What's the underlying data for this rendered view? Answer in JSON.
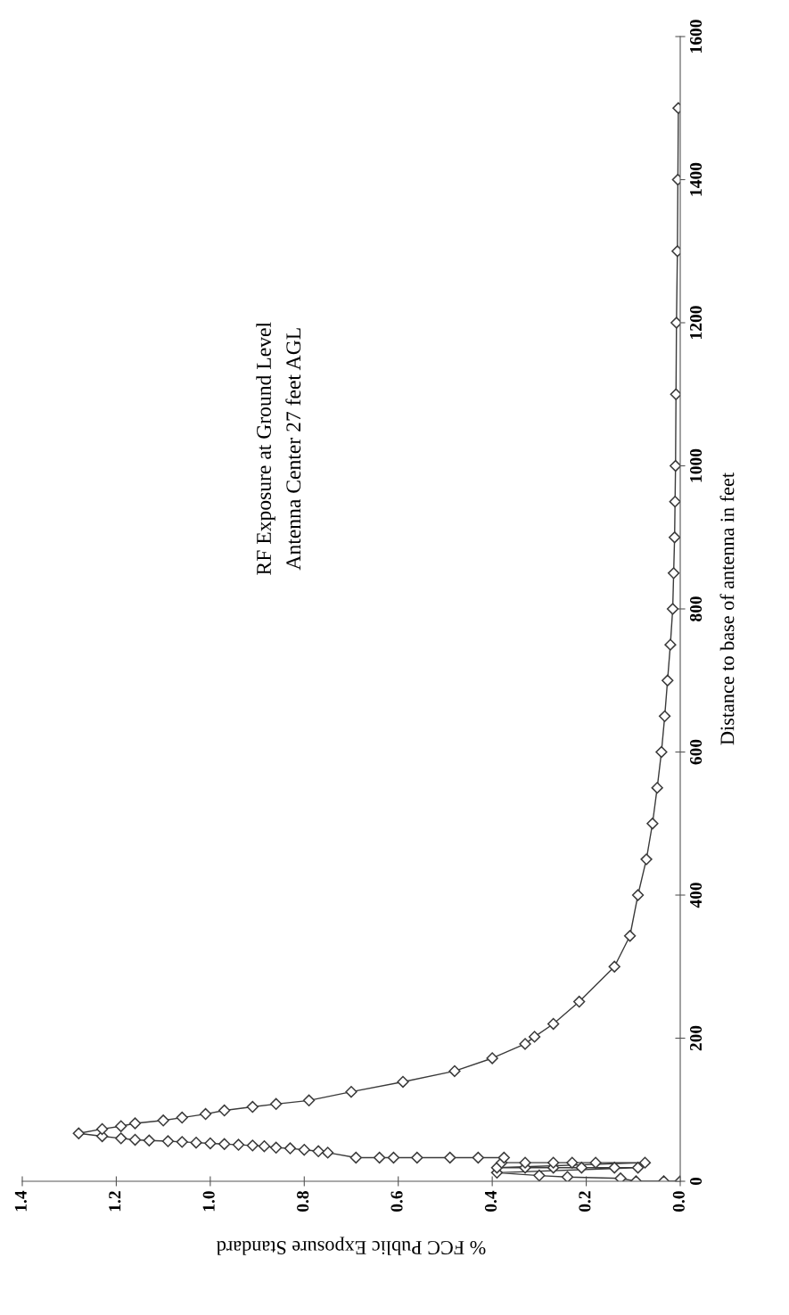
{
  "chart_data": {
    "type": "line",
    "title": "RF Exposure at Ground Level",
    "subtitle": "Antenna Center 27 feet AGL",
    "xlabel": "% FCC Public Exposure Standard",
    "ylabel": "Distance to base of antenna in feet",
    "x": [
      0,
      0.035,
      0.094,
      0.127,
      0.24,
      0.3,
      0.39,
      0.09,
      0.14,
      0.21,
      0.27,
      0.33,
      0.39,
      0.075,
      0.18,
      0.23,
      0.27,
      0.33,
      0.38,
      0.375,
      0.43,
      0.49,
      0.56,
      0.61,
      0.64,
      0.69,
      0.75,
      0.77,
      0.8,
      0.83,
      0.86,
      0.885,
      0.91,
      0.94,
      0.97,
      1.0,
      1.03,
      1.06,
      1.09,
      1.13,
      1.16,
      1.19,
      1.23,
      1.28,
      1.23,
      1.19,
      1.16,
      1.1,
      1.06,
      1.01,
      0.97,
      0.91,
      0.86,
      0.79,
      0.7,
      0.59,
      0.48,
      0.4,
      0.33,
      0.31,
      0.27,
      0.215,
      0.14,
      0.107,
      0.09,
      0.072,
      0.059,
      0.049,
      0.04,
      0.033,
      0.027,
      0.021,
      0.016,
      0.014,
      0.012,
      0.011,
      0.01,
      0.009,
      0.008,
      0.006,
      0.005,
      0.004
    ],
    "series": [
      {
        "color": "#3a3a3a",
        "values": [
          0,
          0,
          0,
          4,
          6,
          8,
          12,
          19,
          19,
          19,
          19,
          19,
          19,
          26,
          26,
          26,
          26,
          26,
          26,
          33,
          33,
          33,
          33,
          33,
          33,
          33,
          40,
          42,
          44,
          46,
          47,
          49,
          50,
          51,
          52,
          53,
          54,
          55,
          56,
          57,
          58,
          60,
          63,
          67,
          73,
          77,
          81,
          85,
          89,
          94,
          99,
          104,
          108,
          113,
          125,
          139,
          154,
          172,
          192,
          202,
          220,
          251,
          300,
          343,
          400,
          450,
          500,
          550,
          600,
          650,
          700,
          750,
          800,
          850,
          900,
          950,
          1000,
          1100,
          1200,
          1300,
          1400,
          1500
        ]
      }
    ],
    "xlim": [
      1.4,
      0
    ],
    "ylim": [
      0,
      1600
    ],
    "xticks": [
      {
        "value": 0,
        "label": "0.0"
      },
      {
        "value": 0.2,
        "label": "0.2"
      },
      {
        "value": 0.4,
        "label": "0.4"
      },
      {
        "value": 0.6,
        "label": "0.6"
      },
      {
        "value": 0.8,
        "label": "0.8"
      },
      {
        "value": 1.0,
        "label": "1.0"
      },
      {
        "value": 1.2,
        "label": "1.2"
      },
      {
        "value": 1.4,
        "label": "1.4"
      }
    ],
    "yticks": [
      0,
      200,
      400,
      600,
      800,
      1000,
      1200,
      1400,
      1600
    ],
    "marker": "diamond",
    "line_style": "solid"
  }
}
